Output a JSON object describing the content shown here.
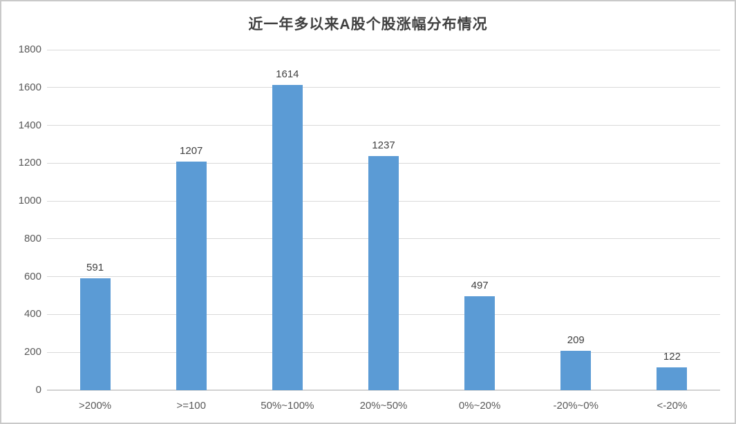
{
  "chart_data": {
    "type": "bar",
    "title": "近一年多以来A股个股涨幅分布情况",
    "categories": [
      ">200%",
      ">=100",
      "50%~100%",
      "20%~50%",
      "0%~20%",
      "-20%~0%",
      "<-20%"
    ],
    "values": [
      591,
      1207,
      1614,
      1237,
      497,
      209,
      122
    ],
    "xlabel": "",
    "ylabel": "",
    "ylim": [
      0,
      1800
    ],
    "ytick_step": 200,
    "yticks": [
      0,
      200,
      400,
      600,
      800,
      1000,
      1200,
      1400,
      1600,
      1800
    ],
    "grid": true,
    "legend_position": "none",
    "data_labels": true,
    "bar_color": "#5b9bd5",
    "gridline_color": "#d9d9d9",
    "axis_line_color": "#d2d2d2",
    "title_color": "#404040",
    "tick_label_color": "#595959",
    "frame_border_color": "#c9c9c9"
  }
}
